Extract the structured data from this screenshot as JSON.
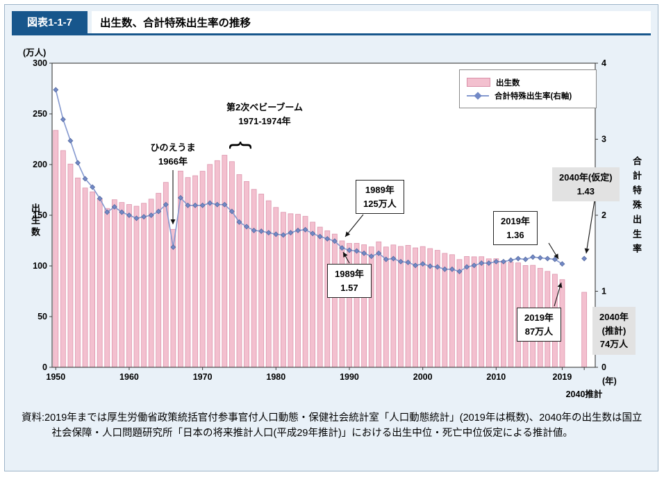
{
  "header": {
    "figure_label": "図表1-1-7",
    "title": "出生数、合計特殊出生率の推移"
  },
  "labels": {
    "left_unit": "(万人)",
    "left_title": "出生数",
    "right_title": "合計特殊出生率",
    "x_unit": "(年)",
    "x_last": "2040推計"
  },
  "legend": {
    "births": "出生数",
    "tfr": "合計特殊出生率(右軸)"
  },
  "annotations": {
    "hinoeuma": [
      "ひのえうま",
      "1966年"
    ],
    "babyboom": [
      "第2次ベビーブーム",
      "1971-1974年"
    ],
    "births1989": [
      "1989年",
      "125万人"
    ],
    "tfr1989": [
      "1989年",
      "1.57"
    ],
    "tfr2019": [
      "2019年",
      "1.36"
    ],
    "tfr2040": [
      "2040年(仮定)",
      "1.43"
    ],
    "births2019": [
      "2019年",
      "87万人"
    ],
    "births2040": [
      "2040年",
      "(推計)",
      "74万人"
    ]
  },
  "source": "資料:2019年までは厚生労働省政策統括官付参事官付人口動態・保健社会統計室「人口動態統計」(2019年は概数)、2040年の出生数は国立社会保障・人口問題研究所「日本の将来推計人口(平成29年推計)」における出生中位・死亡中位仮定による推計値。",
  "colors": {
    "bar_fill": "#f3c0cf",
    "bar_stroke": "#dd96ae",
    "line": "#8498cf",
    "marker": "#7289c6",
    "marker_stroke": "#54699f",
    "axis": "#3a3a3a",
    "arrow": "#111111",
    "header_blue": "#17568c",
    "panel_bg": "#e9f1f8",
    "gray_box": "#e2e2e2"
  },
  "chart_data": {
    "type": "bar+line",
    "title": "出生数、合計特殊出生率の推移",
    "grid": false,
    "legend_position": "top-right",
    "years": [
      1950,
      1951,
      1952,
      1953,
      1954,
      1955,
      1956,
      1957,
      1958,
      1959,
      1960,
      1961,
      1962,
      1963,
      1964,
      1965,
      1966,
      1967,
      1968,
      1969,
      1970,
      1971,
      1972,
      1973,
      1974,
      1975,
      1976,
      1977,
      1978,
      1979,
      1980,
      1981,
      1982,
      1983,
      1984,
      1985,
      1986,
      1987,
      1988,
      1989,
      1990,
      1991,
      1992,
      1993,
      1994,
      1995,
      1996,
      1997,
      1998,
      1999,
      2000,
      2001,
      2002,
      2003,
      2004,
      2005,
      2006,
      2007,
      2008,
      2009,
      2010,
      2011,
      2012,
      2013,
      2014,
      2015,
      2016,
      2017,
      2018,
      2019,
      2040
    ],
    "series": [
      {
        "name": "出生数",
        "type": "bar",
        "axis": "left",
        "unit": "万人",
        "values": [
          233.7,
          213.8,
          200.5,
          186.8,
          176.9,
          173.1,
          166.5,
          156.7,
          165.3,
          162.6,
          160.6,
          158.9,
          161.8,
          165.9,
          171.7,
          182.4,
          136.1,
          193.6,
          187.2,
          189.0,
          193.4,
          200.1,
          203.9,
          209.2,
          202.9,
          190.1,
          183.3,
          175.5,
          170.9,
          164.3,
          157.7,
          152.9,
          151.5,
          150.9,
          148.9,
          143.2,
          138.3,
          134.7,
          131.4,
          124.7,
          122.2,
          122.3,
          120.9,
          118.8,
          123.8,
          118.7,
          120.7,
          119.2,
          120.3,
          117.8,
          119.1,
          117.1,
          115.4,
          112.4,
          111.1,
          106.3,
          109.3,
          109.0,
          109.1,
          107.0,
          107.1,
          105.1,
          103.7,
          103.0,
          100.4,
          100.6,
          97.7,
          94.6,
          91.8,
          86.5,
          74.0
        ]
      },
      {
        "name": "合計特殊出生率",
        "type": "line",
        "axis": "right",
        "values": [
          3.65,
          3.26,
          2.98,
          2.69,
          2.48,
          2.37,
          2.22,
          2.04,
          2.11,
          2.04,
          2.0,
          1.96,
          1.98,
          2.0,
          2.05,
          2.14,
          1.58,
          2.23,
          2.13,
          2.13,
          2.13,
          2.16,
          2.14,
          2.14,
          2.05,
          1.91,
          1.85,
          1.8,
          1.79,
          1.77,
          1.75,
          1.74,
          1.77,
          1.8,
          1.81,
          1.76,
          1.72,
          1.69,
          1.66,
          1.57,
          1.54,
          1.53,
          1.5,
          1.46,
          1.5,
          1.42,
          1.43,
          1.39,
          1.38,
          1.34,
          1.36,
          1.33,
          1.32,
          1.29,
          1.29,
          1.26,
          1.32,
          1.34,
          1.37,
          1.37,
          1.39,
          1.39,
          1.41,
          1.43,
          1.42,
          1.45,
          1.44,
          1.43,
          1.42,
          1.36,
          1.43
        ]
      }
    ],
    "left_axis": {
      "label": "出生数",
      "unit": "万人",
      "range": [
        0,
        300
      ],
      "ticks": [
        0,
        50,
        100,
        150,
        200,
        250,
        300
      ]
    },
    "right_axis": {
      "label": "合計特殊出生率",
      "range": [
        0,
        4
      ],
      "ticks": [
        0,
        1,
        2,
        3,
        4
      ]
    },
    "x_axis": {
      "tick_years": [
        1950,
        1960,
        1970,
        1980,
        1990,
        2000,
        2010,
        2019
      ],
      "projection_year": 2040,
      "projection_label": "2040推計",
      "unit": "年"
    }
  }
}
